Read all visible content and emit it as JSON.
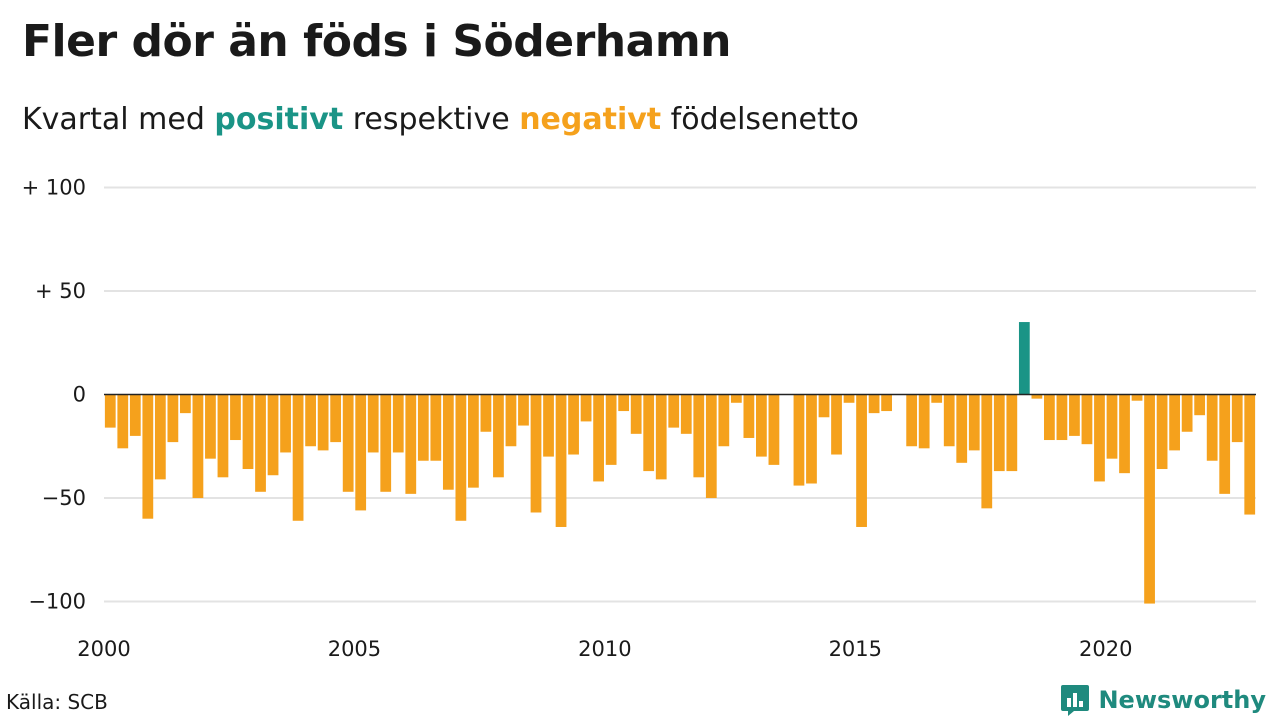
{
  "title": "Fler dör än föds i Söderhamn",
  "subtitle": {
    "prefix": "Kvartal med ",
    "positive": "positivt",
    "middle": " respektive ",
    "negative": "negativt",
    "suffix": " födelsenetto"
  },
  "colors": {
    "positive": "#1a9486",
    "negative": "#f5a11c",
    "grid": "#e3e3e3",
    "baseline": "#222222",
    "brand": "#1f8a7e"
  },
  "source": "Källa: SCB",
  "brand": {
    "name": "Newsworthy",
    "icon": "bar-chart-speech-bubble-icon"
  },
  "chart_data": {
    "type": "bar",
    "ylim": [
      -100,
      100
    ],
    "grid": true,
    "y_ticks": [
      {
        "value": 100,
        "label": "+ 100"
      },
      {
        "value": 50,
        "label": "+  50"
      },
      {
        "value": 0,
        "label": "0"
      },
      {
        "value": -50,
        "label": "−50"
      },
      {
        "value": -100,
        "label": "−100"
      }
    ],
    "x_ticks": [
      {
        "year": 2000,
        "label": "2000"
      },
      {
        "year": 2005,
        "label": "2005"
      },
      {
        "year": 2010,
        "label": "2010"
      },
      {
        "year": 2015,
        "label": "2015"
      },
      {
        "year": 2020,
        "label": "2020"
      }
    ],
    "x_start_year": 2000,
    "periods_per_year": 4,
    "values": [
      -16,
      -26,
      -20,
      -60,
      -41,
      -23,
      -9,
      -50,
      -31,
      -40,
      -22,
      -36,
      -47,
      -39,
      -28,
      -61,
      -25,
      -27,
      -23,
      -47,
      -56,
      -28,
      -47,
      -28,
      -48,
      -32,
      -32,
      -46,
      -61,
      -45,
      -18,
      -40,
      -25,
      -15,
      -57,
      -30,
      -64,
      -29,
      -13,
      -42,
      -34,
      -8,
      -19,
      -37,
      -41,
      -16,
      -19,
      -40,
      -50,
      -25,
      -4,
      -21,
      -30,
      -34,
      0,
      -44,
      -43,
      -11,
      -29,
      -4,
      -64,
      -9,
      -8,
      0,
      -25,
      -26,
      -4,
      -25,
      -33,
      -27,
      -55,
      -37,
      -37,
      35,
      -2,
      -22,
      -22,
      -20,
      -24,
      -42,
      -31,
      -38,
      -3,
      -101,
      -36,
      -27,
      -18,
      -10,
      -32,
      -48,
      -23,
      -58
    ]
  }
}
